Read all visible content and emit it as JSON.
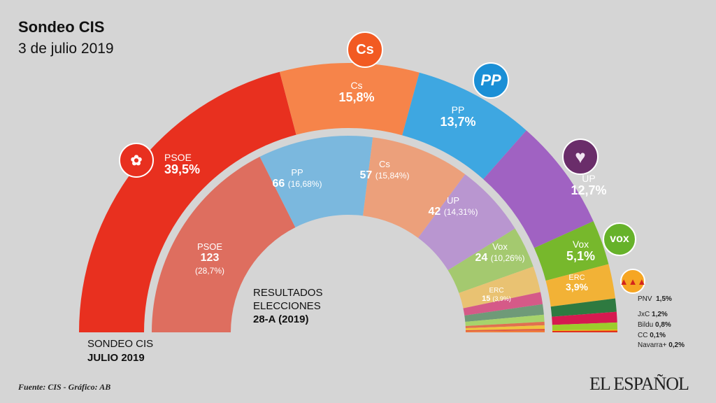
{
  "header": {
    "title": "Sondeo CIS",
    "subtitle": "3 de julio 2019"
  },
  "footer": {
    "source": "Fuente: CIS - Gráfico: AB",
    "brand": "EL ESPAÑOL"
  },
  "chart_data": [
    {
      "type": "pie",
      "variant": "semicircle-outer",
      "title": "SONDEO CIS",
      "subtitle": "JULIO 2019",
      "unit": "%",
      "categories": [
        "PSOE",
        "Cs",
        "PP",
        "UP",
        "Vox",
        "ERC",
        "PNV",
        "JxC",
        "Bildu",
        "CC",
        "Navarra+"
      ],
      "values": [
        39.5,
        15.8,
        13.7,
        12.7,
        5.1,
        3.9,
        1.5,
        1.2,
        0.8,
        0.1,
        0.2
      ],
      "labels": [
        "39,5%",
        "15,8%",
        "13,7%",
        "12,7%",
        "5,1%",
        "3,9%",
        "1,5%",
        "1,2%",
        "0,8%",
        "0,1%",
        "0,2%"
      ],
      "colors": [
        "#e8301f",
        "#f6844a",
        "#3ea7e1",
        "#a062c2",
        "#77b82c",
        "#f2b236",
        "#2e7a40",
        "#d51a50",
        "#9ccc2c",
        "#f2c200",
        "#e0301e"
      ]
    },
    {
      "type": "pie",
      "variant": "semicircle-inner",
      "title": "RESULTADOS ELECCIONES",
      "subtitle": "28-A (2019)",
      "unit": "seats",
      "categories": [
        "PSOE",
        "PP",
        "Cs",
        "UP",
        "Vox",
        "ERC",
        "",
        "",
        "",
        "",
        "",
        "",
        ""
      ],
      "values": [
        123,
        66,
        57,
        42,
        24,
        15,
        7,
        6,
        4,
        2,
        2,
        1,
        1
      ],
      "labels": [
        "123",
        "66",
        "57",
        "42",
        "24",
        "15",
        "",
        "",
        "",
        "",
        "",
        "",
        ""
      ],
      "percent_labels": [
        "(28,7%)",
        "(16,68%)",
        "(15,84%)",
        "(14,31%)",
        "(10,26%)",
        "(3,9%)",
        "",
        "",
        "",
        "",
        "",
        "",
        ""
      ],
      "colors": [
        "#de6e5f",
        "#7bb8de",
        "#eca07b",
        "#b996d0",
        "#a4c96f",
        "#e9c272",
        "#d55a88",
        "#6f9a78",
        "#a7d36b",
        "#e07050",
        "#f0c23e",
        "#e05a40",
        "#f07c3c"
      ]
    }
  ],
  "logos": {
    "psoe": "PSOE rose",
    "cs": "Cs",
    "pp": "PP",
    "up": "heart",
    "vox": "vox",
    "erc": "ERC"
  }
}
